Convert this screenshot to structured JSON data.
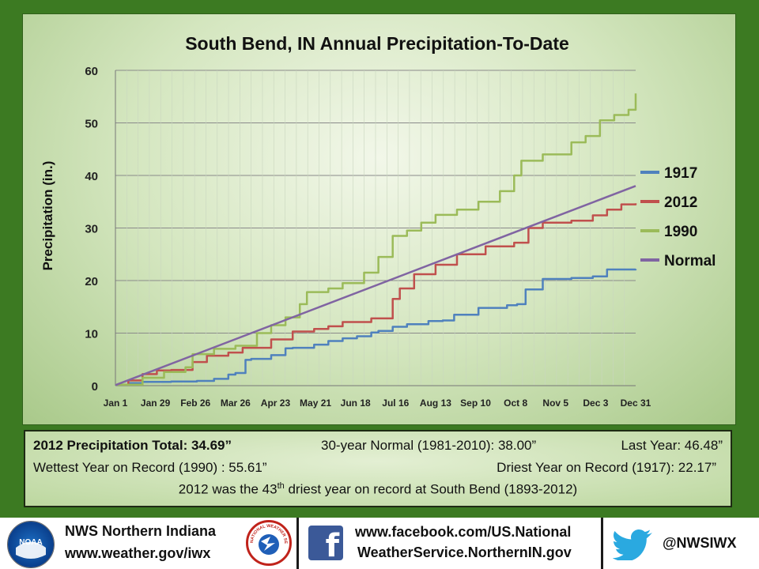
{
  "chart_data": {
    "type": "line",
    "title": "South Bend, IN Annual Precipitation-To-Date",
    "ylabel": "Precipitation (in.)",
    "xlabel": "",
    "ylim": [
      0,
      60
    ],
    "yticks": [
      "0",
      "10",
      "20",
      "30",
      "40",
      "50",
      "60"
    ],
    "xticks": [
      "Jan 1",
      "Jan 29",
      "Feb 26",
      "Mar 26",
      "Apr 23",
      "May 21",
      "Jun 18",
      "Jul 16",
      "Aug 13",
      "Sep 10",
      "Oct 8",
      "Nov 5",
      "Dec 3",
      "Dec 31"
    ],
    "xtick_days": [
      1,
      29,
      57,
      85,
      113,
      141,
      169,
      197,
      225,
      253,
      281,
      309,
      337,
      365
    ],
    "grid": "horizontal",
    "legend_position": "right",
    "series": [
      {
        "name": "1917",
        "color": "#4f81bd",
        "x": [
          1,
          10,
          20,
          40,
          58,
          70,
          80,
          85,
          92,
          96,
          110,
          120,
          125,
          140,
          150,
          160,
          170,
          180,
          185,
          195,
          205,
          220,
          230,
          238,
          255,
          275,
          282,
          288,
          300,
          320,
          335,
          345,
          365
        ],
        "y": [
          0.2,
          0.5,
          0.7,
          0.8,
          0.9,
          1.3,
          2.1,
          2.4,
          4.9,
          5.1,
          5.8,
          7.1,
          7.2,
          7.8,
          8.5,
          9.0,
          9.4,
          10.1,
          10.4,
          11.2,
          11.7,
          12.3,
          12.4,
          13.5,
          14.8,
          15.3,
          15.5,
          18.3,
          20.3,
          20.5,
          20.8,
          22.1,
          22.2
        ]
      },
      {
        "name": "2012",
        "color": "#c0504d",
        "x": [
          1,
          10,
          20,
          30,
          40,
          55,
          65,
          80,
          90,
          110,
          125,
          140,
          150,
          160,
          180,
          195,
          200,
          210,
          225,
          240,
          260,
          280,
          290,
          300,
          320,
          335,
          345,
          355,
          365
        ],
        "y": [
          0.2,
          1.0,
          2.2,
          2.9,
          3.0,
          4.5,
          5.7,
          6.3,
          7.2,
          8.8,
          10.3,
          10.8,
          11.3,
          12.1,
          12.8,
          16.5,
          18.5,
          21.2,
          23.0,
          25.0,
          26.5,
          27.2,
          30.0,
          31.0,
          31.4,
          32.4,
          33.5,
          34.5,
          34.69
        ]
      },
      {
        "name": "1990",
        "color": "#9bbb59",
        "x": [
          1,
          20,
          35,
          50,
          55,
          70,
          85,
          100,
          110,
          120,
          130,
          135,
          150,
          160,
          175,
          185,
          195,
          205,
          215,
          225,
          240,
          255,
          270,
          280,
          285,
          300,
          320,
          330,
          340,
          350,
          360,
          365
        ],
        "y": [
          0.2,
          1.5,
          2.6,
          3.5,
          6.0,
          7.0,
          7.6,
          10.0,
          11.5,
          13.0,
          15.5,
          17.8,
          18.5,
          19.5,
          21.5,
          24.5,
          28.5,
          29.5,
          31.0,
          32.5,
          33.5,
          35.0,
          37.0,
          40.0,
          42.8,
          44.0,
          46.3,
          47.5,
          50.5,
          51.5,
          52.5,
          55.61
        ]
      },
      {
        "name": "Normal",
        "color": "#8064a2",
        "x": [
          1,
          365
        ],
        "y": [
          0.1,
          38.0
        ]
      }
    ]
  },
  "stats": {
    "total_label": "2012 Precipitation Total:  34.69”",
    "normal_label": "30-year Normal (1981-2010):  38.00”",
    "last_year_label": "Last Year: 46.48”",
    "wettest_label": "Wettest Year on Record (1990) : 55.61”",
    "driest_label": "Driest Year on Record (1917): 22.17”",
    "rank_pre": "2012 was the 43",
    "rank_sup": "th",
    "rank_post": " driest year on record at South Bend (1893-2012)"
  },
  "footer": {
    "org_name": "NWS  Northern Indiana",
    "org_url": "www.weather.gov/iwx",
    "facebook_line1": "www.facebook.com/US.National",
    "facebook_line2": "WeatherService.NorthernIN.gov",
    "twitter_handle": "@NWSIWX",
    "noaa_text": "NOAA",
    "nws_seal_text": "NATIONAL WEATHER SERVICE",
    "facebook_icon": "f"
  },
  "colors": {
    "frame": "#3c7a22",
    "grid": "#8a8a8a"
  }
}
